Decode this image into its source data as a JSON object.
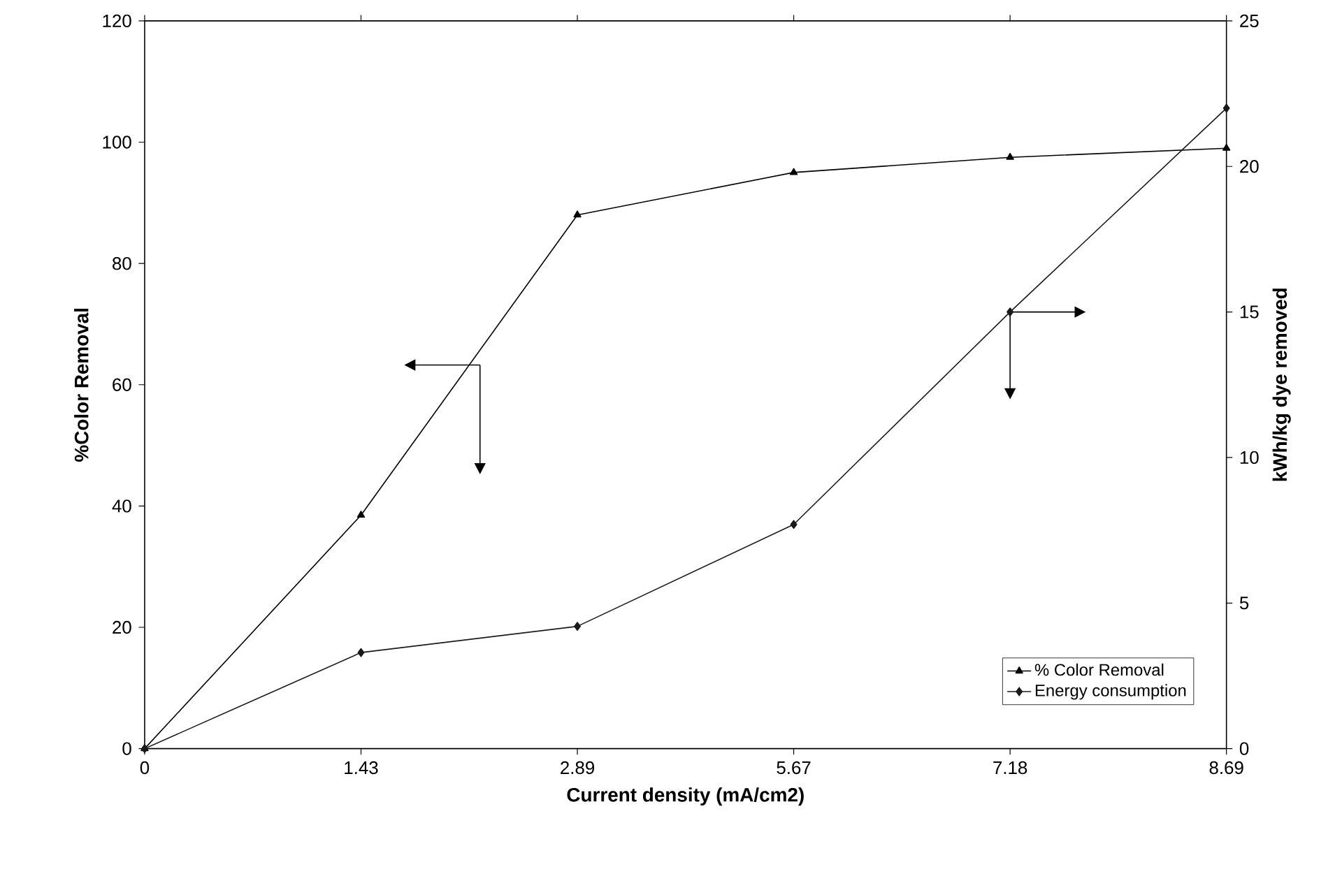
{
  "chart_data": {
    "type": "line",
    "xlabel": "Current density (mA/cm2)",
    "ylabel": "%Color Removal",
    "y2label": "kWh/kg dye removed",
    "categories": [
      "0",
      "1.43",
      "2.89",
      "5.67",
      "7.18",
      "8.69"
    ],
    "series": [
      {
        "name": "% Color Removal",
        "color": "#000000",
        "marker": "triangle",
        "values": [
          0,
          38.5,
          88,
          95,
          97.5,
          99
        ]
      },
      {
        "name": "Energy consumption",
        "color": "#1a1a1a",
        "marker": "diamond",
        "axis": "y2",
        "values": [
          0,
          3.3,
          4.2,
          7.7,
          15.0,
          22.0
        ]
      }
    ],
    "ylim": [
      0,
      120
    ],
    "yticks": [
      0,
      20,
      40,
      60,
      80,
      100,
      120
    ],
    "y2lim": [
      0,
      25
    ],
    "y2ticks": [
      0,
      5,
      10,
      15,
      20,
      25
    ],
    "legend": "bottom right",
    "grid": false,
    "line_style": "solid"
  }
}
